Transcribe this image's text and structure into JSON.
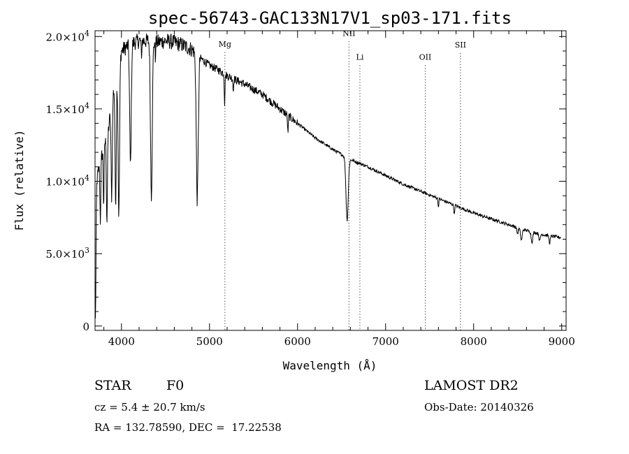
{
  "chart_data": {
    "type": "line",
    "title": "spec-56743-GAC133N17V1_sp03-171.fits",
    "xlabel": "Wavelength (Å)",
    "ylabel": "Flux (relative)",
    "xlim": [
      3700,
      9050
    ],
    "ylim": [
      -300,
      20400
    ],
    "x_ticks": [
      {
        "value": 4000,
        "label": "4000"
      },
      {
        "value": 5000,
        "label": "5000"
      },
      {
        "value": 6000,
        "label": "6000"
      },
      {
        "value": 7000,
        "label": "7000"
      },
      {
        "value": 8000,
        "label": "8000"
      },
      {
        "value": 9000,
        "label": "9000"
      }
    ],
    "y_ticks": [
      {
        "value": 0,
        "mant": "0",
        "exp": ""
      },
      {
        "value": 5000,
        "mant": "5.0×10",
        "exp": "3"
      },
      {
        "value": 10000,
        "mant": "1.0×10",
        "exp": "4"
      },
      {
        "value": 15000,
        "mant": "1.5×10",
        "exp": "4"
      },
      {
        "value": 20000,
        "mant": "2.0×10",
        "exp": "4"
      }
    ],
    "x_minor_step": 200,
    "y_minor_step": 1000,
    "continuum": [
      [
        3700,
        9500
      ],
      [
        3800,
        12500
      ],
      [
        3850,
        13500
      ],
      [
        3900,
        16000
      ],
      [
        3950,
        17500
      ],
      [
        4000,
        19000
      ],
      [
        4100,
        19500
      ],
      [
        4200,
        19700
      ],
      [
        4300,
        19700
      ],
      [
        4400,
        19600
      ],
      [
        4500,
        19700
      ],
      [
        4600,
        19600
      ],
      [
        4700,
        19400
      ],
      [
        4800,
        19100
      ],
      [
        4900,
        18500
      ],
      [
        5000,
        18000
      ],
      [
        5100,
        17700
      ],
      [
        5200,
        17300
      ],
      [
        5400,
        16700
      ],
      [
        5600,
        16000
      ],
      [
        5800,
        15000
      ],
      [
        6000,
        14000
      ],
      [
        6200,
        13000
      ],
      [
        6400,
        12200
      ],
      [
        6600,
        11500
      ],
      [
        6800,
        11000
      ],
      [
        7000,
        10400
      ],
      [
        7200,
        9800
      ],
      [
        7400,
        9300
      ],
      [
        7600,
        8800
      ],
      [
        7800,
        8300
      ],
      [
        8000,
        7800
      ],
      [
        8200,
        7400
      ],
      [
        8400,
        7000
      ],
      [
        8600,
        6600
      ],
      [
        8800,
        6300
      ],
      [
        9000,
        6100
      ]
    ],
    "absorption_lines": [
      {
        "center": 3705,
        "width": 6,
        "depth": 9000
      },
      {
        "center": 3760,
        "width": 5,
        "depth": 4000
      },
      {
        "center": 3798,
        "width": 5,
        "depth": 4000
      },
      {
        "center": 3835,
        "width": 6,
        "depth": 6000
      },
      {
        "center": 3889,
        "width": 7,
        "depth": 6500
      },
      {
        "center": 3934,
        "width": 7,
        "depth": 8500
      },
      {
        "center": 3970,
        "width": 8,
        "depth": 10500
      },
      {
        "center": 4102,
        "width": 9,
        "depth": 8400
      },
      {
        "center": 4227,
        "width": 3,
        "depth": 1500
      },
      {
        "center": 4340,
        "width": 10,
        "depth": 10600
      },
      {
        "center": 4384,
        "width": 3,
        "depth": 1200
      },
      {
        "center": 4861,
        "width": 11,
        "depth": 10000
      },
      {
        "center": 5172,
        "width": 4,
        "depth": 2000
      },
      {
        "center": 5270,
        "width": 3,
        "depth": 1000
      },
      {
        "center": 5890,
        "width": 4,
        "depth": 1200
      },
      {
        "center": 6563,
        "width": 13,
        "depth": 4300
      },
      {
        "center": 7600,
        "width": 4,
        "depth": 600
      },
      {
        "center": 7780,
        "width": 4,
        "depth": 700
      },
      {
        "center": 8498,
        "width": 8,
        "depth": 400
      },
      {
        "center": 8542,
        "width": 9,
        "depth": 800
      },
      {
        "center": 8662,
        "width": 9,
        "depth": 700
      },
      {
        "center": 8750,
        "width": 7,
        "depth": 500
      },
      {
        "center": 8863,
        "width": 7,
        "depth": 500
      }
    ],
    "reference_lines": [
      {
        "wavelength": 5175,
        "label": "Mg",
        "label_flux": 19300
      },
      {
        "wavelength": 6584,
        "label": "NII",
        "label_flux": 20050
      },
      {
        "wavelength": 6708,
        "label": "Li",
        "label_flux": 18400
      },
      {
        "wavelength": 7450,
        "label": "OII",
        "label_flux": 18400
      },
      {
        "wavelength": 7850,
        "label": "SII",
        "label_flux": 19250
      }
    ],
    "grid": false,
    "legend": "none"
  },
  "info": {
    "object_class": "STAR",
    "subclass": "F0",
    "cz": "cz = 5.4 ± 20.7 km/s",
    "radec": "RA = 132.78590, DEC =  17.22538",
    "survey": "LAMOST DR2",
    "obs_date": "Obs-Date: 20140326"
  },
  "colors": {
    "ink": "#000000",
    "background": "#ffffff"
  }
}
